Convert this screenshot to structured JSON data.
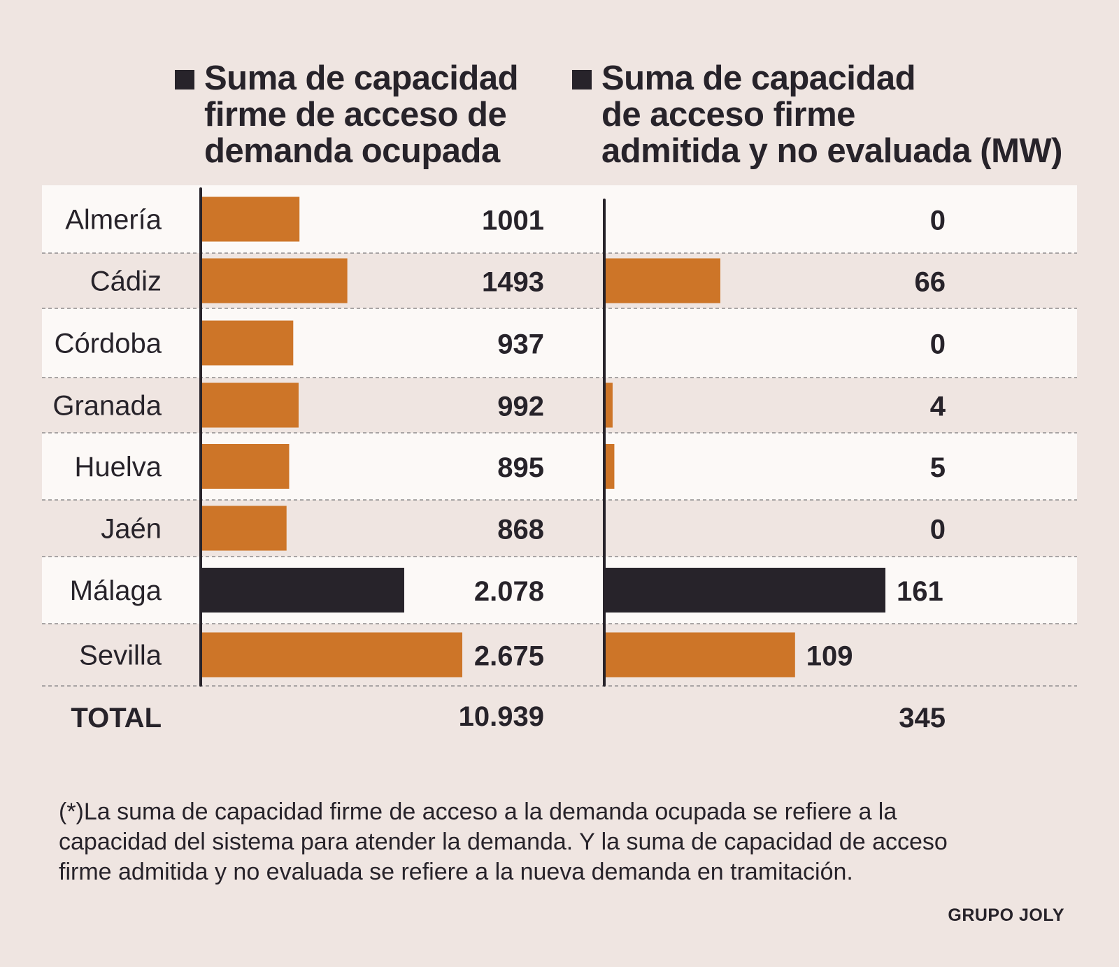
{
  "chart_data": {
    "type": "bar",
    "orientation": "horizontal",
    "categories": [
      "Almería",
      "Cádiz",
      "Córdoba",
      "Granada",
      "Huelva",
      "Jaén",
      "Málaga",
      "Sevilla"
    ],
    "series": [
      {
        "name": "Suma de capacidad firme de acceso de demanda ocupada",
        "values": [
          1001,
          1493,
          937,
          992,
          895,
          868,
          2078,
          2675
        ],
        "labels": [
          "1001",
          "1493",
          "937",
          "992",
          "895",
          "868",
          "2.078",
          "2.675"
        ],
        "total_label": "10.939",
        "xlim": [
          0,
          2675
        ]
      },
      {
        "name": "Suma de capacidad de acceso firme admitida y no evaluada (MW)",
        "values": [
          0,
          66,
          0,
          4,
          5,
          0,
          161,
          109
        ],
        "labels": [
          "0",
          "66",
          "0",
          "4",
          "5",
          "0",
          "161",
          "109"
        ],
        "total_label": "345",
        "xlim": [
          0,
          161
        ]
      }
    ],
    "highlight_category": "Málaga",
    "total_row_label": "TOTAL",
    "legend": [
      "Suma de capacidad\nfirme de acceso de\ndemanda ocupada",
      "Suma de capacidad\nde acceso firme\nadmitida y no evaluada (MW)"
    ],
    "legend_placement": "top",
    "grid": false,
    "colors": {
      "bar": "#cd7528",
      "highlight": "#27232a",
      "axis": "#27232a",
      "row_light": "#fcf9f7",
      "row_dark": "#efe5e1",
      "divider": "#a8a4a4"
    }
  },
  "footnote": "(*)La suma de capacidad firme de acceso a la demanda ocupada se refiere a la\ncapacidad del sistema para atender la demanda. Y la suma de capacidad de acceso\nfirme admitida y no evaluada se refiere a la nueva demanda en tramitación.",
  "credit": "GRUPO JOLY"
}
